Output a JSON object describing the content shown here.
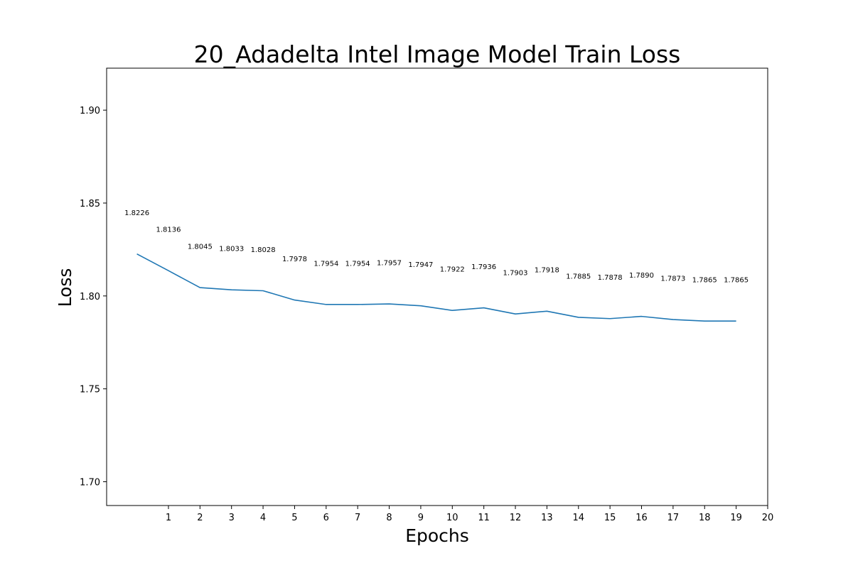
{
  "chart_data": {
    "type": "line",
    "title": "20_Adadelta Intel Image Model Train Loss",
    "xlabel": "Epochs",
    "ylabel": "Loss",
    "x": [
      0,
      1,
      2,
      3,
      4,
      5,
      6,
      7,
      8,
      9,
      10,
      11,
      12,
      13,
      14,
      15,
      16,
      17,
      18,
      19
    ],
    "series": [
      {
        "values": [
          1.8226,
          1.8136,
          1.8045,
          1.8033,
          1.8028,
          1.7978,
          1.7954,
          1.7954,
          1.7957,
          1.7947,
          1.7922,
          1.7936,
          1.7903,
          1.7918,
          1.7885,
          1.7878,
          1.789,
          1.7873,
          1.7865,
          1.7865
        ],
        "data_labels": [
          "1.8226",
          "1.8136",
          "1.8045",
          "1.8033",
          "1.8028",
          "1.7978",
          "1.7954",
          "1.7954",
          "1.7957",
          "1.7947",
          "1.7922",
          "1.7936",
          "1.7903",
          "1.7918",
          "1.7885",
          "1.7878",
          "1.7890",
          "1.7873",
          "1.7865",
          "1.7865"
        ],
        "color": "#1f77b4"
      }
    ],
    "xticks": [
      1,
      2,
      3,
      4,
      5,
      6,
      7,
      8,
      9,
      10,
      11,
      12,
      13,
      14,
      15,
      16,
      17,
      18,
      19,
      20
    ],
    "xtick_labels": [
      "1",
      "2",
      "3",
      "4",
      "5",
      "6",
      "7",
      "8",
      "9",
      "10",
      "11",
      "12",
      "13",
      "14",
      "15",
      "16",
      "17",
      "18",
      "19",
      "20"
    ],
    "yticks": [
      1.7,
      1.75,
      1.8,
      1.85,
      1.9
    ],
    "ytick_labels": [
      "1.70",
      "1.75",
      "1.80",
      "1.85",
      "1.90"
    ],
    "xlim": [
      -0.96,
      20
    ],
    "ylim": [
      1.6872,
      1.9226
    ],
    "grid": false,
    "legend": "none"
  }
}
